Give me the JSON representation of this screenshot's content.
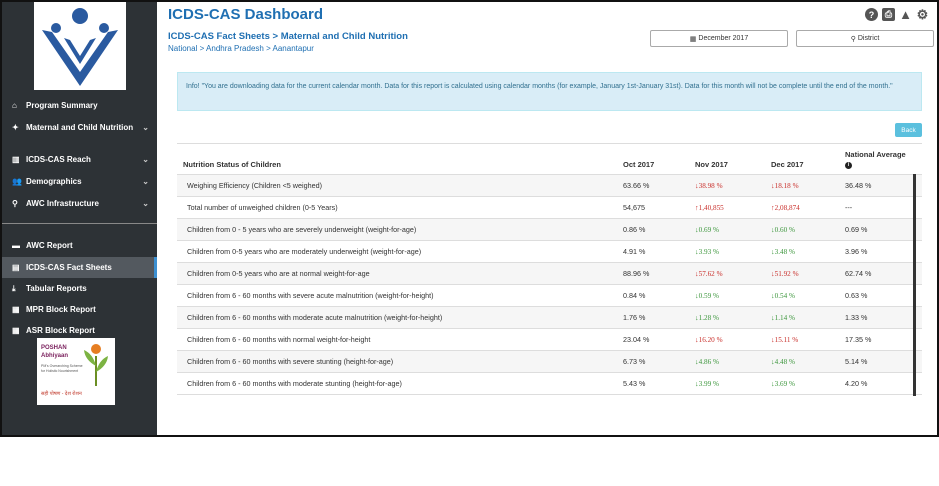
{
  "app": {
    "title": "ICDS-CAS Dashboard"
  },
  "header_icons": [
    "help-icon",
    "print-icon",
    "warning-icon",
    "settings-icon"
  ],
  "sidebar": {
    "items_top": [
      {
        "label": "Program Summary",
        "icon": "home-icon",
        "chevron": false
      },
      {
        "label": "Maternal and Child Nutrition",
        "icon": "child-icon",
        "chevron": true
      },
      {
        "label": "ICDS-CAS Reach",
        "icon": "bar-chart-icon",
        "chevron": true
      },
      {
        "label": "Demographics",
        "icon": "users-icon",
        "chevron": true
      },
      {
        "label": "AWC Infrastructure",
        "icon": "location-icon",
        "chevron": true
      }
    ],
    "items_bottom": [
      {
        "label": "AWC Report",
        "icon": "report-icon"
      },
      {
        "label": "ICDS-CAS Fact Sheets",
        "icon": "document-icon",
        "active": true
      },
      {
        "label": "Tabular Reports",
        "icon": "download-icon"
      },
      {
        "label": "MPR Block Report",
        "icon": "block-report-icon"
      },
      {
        "label": "ASR Block Report",
        "icon": "block-report-icon"
      }
    ],
    "poshan": {
      "line1": "POSHAN",
      "line2": "Abhiyaan",
      "tagline": "PM's Overarching Scheme for Holistic Nourishment",
      "hindi": "सही पोषण - देश रोशन"
    }
  },
  "page": {
    "subtitle": "ICDS-CAS Fact Sheets > Maternal and Child Nutrition",
    "breadcrumb": "National > Andhra Pradesh > Aanantapur",
    "month_filter": "December 2017",
    "location_filter": "District",
    "info": "Info! \"You are downloading data for the current calendar month. Data for this report is calculated using calendar months (for example, January 1st-January 31st). Data for this month will not be complete until the end of the month.\"",
    "back_label": "Back"
  },
  "table": {
    "headers": [
      "Nutrition Status of Children",
      "Oct 2017",
      "Nov 2017",
      "Dec 2017",
      "National Average"
    ],
    "rows": [
      {
        "label": "Weighing Efficiency (Children <5 weighed)",
        "oct": "63.66 %",
        "nov": "38.98 %",
        "nov_dir": "down-red",
        "dec": "18.18 %",
        "dec_dir": "down-red",
        "nat": "36.48 %"
      },
      {
        "label": "Total number of unweighed children (0-5 Years)",
        "oct": "54,675",
        "nov": "1,40,855",
        "nov_dir": "up-red",
        "dec": "2,08,874",
        "dec_dir": "up-red",
        "nat": "---"
      },
      {
        "label": "Children from 0 - 5 years who are severely underweight (weight-for-age)",
        "oct": "0.86 %",
        "nov": "0.69 %",
        "nov_dir": "down-green",
        "dec": "0.60 %",
        "dec_dir": "down-green",
        "nat": "0.69 %"
      },
      {
        "label": "Children from 0-5 years who are moderately underweight (weight-for-age)",
        "oct": "4.91 %",
        "nov": "3.93 %",
        "nov_dir": "down-green",
        "dec": "3.48 %",
        "dec_dir": "down-green",
        "nat": "3.96 %"
      },
      {
        "label": "Children from 0-5 years who are at normal weight-for-age",
        "oct": "88.96 %",
        "nov": "57.62 %",
        "nov_dir": "down-red",
        "dec": "51.92 %",
        "dec_dir": "down-red",
        "nat": "62.74 %"
      },
      {
        "label": "Children from 6 - 60 months with severe acute malnutrition (weight-for-height)",
        "oct": "0.84 %",
        "nov": "0.59 %",
        "nov_dir": "down-green",
        "dec": "0.54 %",
        "dec_dir": "down-green",
        "nat": "0.63 %"
      },
      {
        "label": "Children from 6 - 60 months with moderate acute malnutrition (weight-for-height)",
        "oct": "1.76 %",
        "nov": "1.28 %",
        "nov_dir": "down-green",
        "dec": "1.14 %",
        "dec_dir": "down-green",
        "nat": "1.33 %"
      },
      {
        "label": "Children from 6 - 60 months with normal weight-for-height",
        "oct": "23.04 %",
        "nov": "16.20 %",
        "nov_dir": "down-red",
        "dec": "15.11 %",
        "dec_dir": "down-red",
        "nat": "17.35 %"
      },
      {
        "label": "Children from 6 - 60 months with severe stunting (height-for-age)",
        "oct": "6.73 %",
        "nov": "4.86 %",
        "nov_dir": "down-green",
        "dec": "4.48 %",
        "dec_dir": "down-green",
        "nat": "5.14 %"
      },
      {
        "label": "Children from 6 - 60 months with moderate stunting (height-for-age)",
        "oct": "5.43 %",
        "nov": "3.99 %",
        "nov_dir": "down-green",
        "dec": "3.69 %",
        "dec_dir": "down-green",
        "nat": "4.20 %"
      }
    ]
  },
  "colors": {
    "sidebar_bg": "#2d3236",
    "title_blue": "#1f6fb2",
    "info_bg": "#d9edf7",
    "trend_red": "#c9302c",
    "trend_green": "#3c963c"
  }
}
